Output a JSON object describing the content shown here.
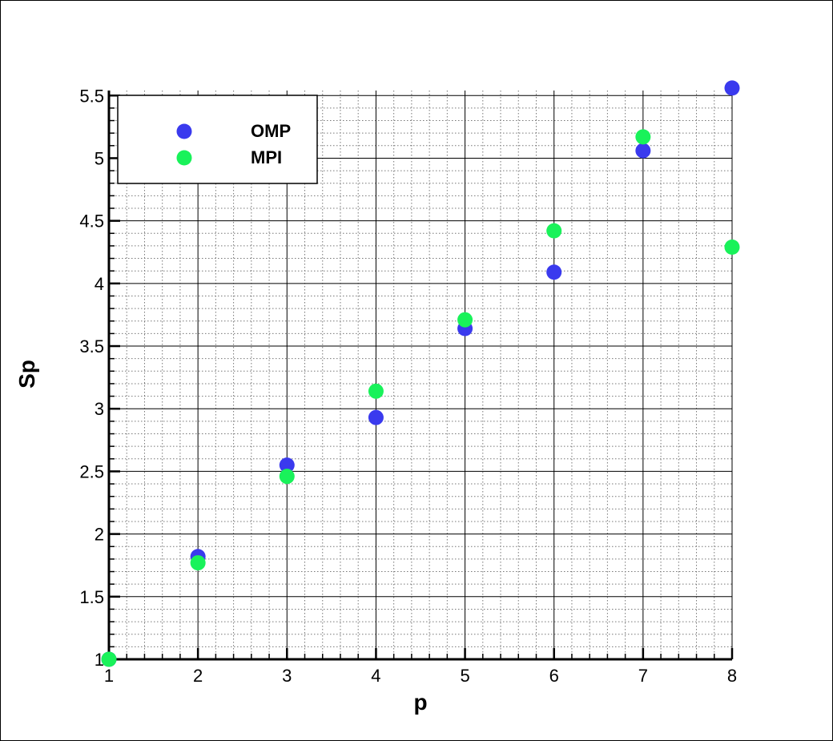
{
  "chart_data": {
    "type": "scatter",
    "xlabel": "p",
    "ylabel": "Sp",
    "xlim": [
      1,
      8
    ],
    "ylim": [
      1,
      5.5
    ],
    "x_ticks": [
      "1",
      "2",
      "3",
      "4",
      "5",
      "6",
      "7",
      "8"
    ],
    "y_ticks": [
      "1",
      "1.5",
      "2",
      "2.5",
      "3",
      "3.5",
      "4",
      "4.5",
      "5",
      "5.5"
    ],
    "grid": true,
    "legend_position": "top-left",
    "series": [
      {
        "name": "OMP",
        "color": "#3a3aee",
        "x": [
          1,
          2,
          3,
          4,
          5,
          6,
          7,
          8
        ],
        "y": [
          1.0,
          1.82,
          2.55,
          2.93,
          3.64,
          4.09,
          5.06,
          5.56
        ]
      },
      {
        "name": "MPI",
        "color": "#19f25a",
        "x": [
          1,
          2,
          3,
          4,
          5,
          6,
          7,
          8
        ],
        "y": [
          1.0,
          1.77,
          2.46,
          3.14,
          3.71,
          4.42,
          5.17,
          4.29
        ]
      }
    ]
  }
}
